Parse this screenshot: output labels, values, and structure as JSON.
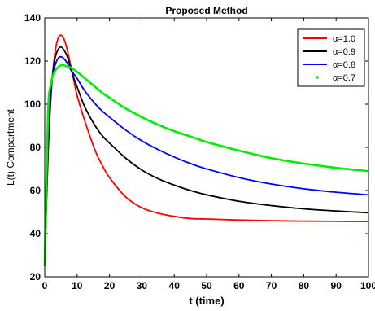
{
  "chart_data": {
    "type": "line",
    "title": "Proposed Method",
    "xlabel": "t (time)",
    "ylabel": "L(t) Compartment",
    "xlim": [
      0,
      100
    ],
    "ylim": [
      20,
      140
    ],
    "x_ticks": [
      "0",
      "10",
      "20",
      "30",
      "40",
      "50",
      "60",
      "70",
      "80",
      "90",
      "100"
    ],
    "y_ticks": [
      "20",
      "40",
      "60",
      "80",
      "100",
      "120",
      "140"
    ],
    "grid": false,
    "legend_position": "top-right",
    "series": [
      {
        "name": "α=1.0",
        "color": "#ff0000",
        "style": "line",
        "x": [
          0,
          1,
          2,
          3,
          4,
          5,
          6,
          7,
          8,
          9,
          10,
          12,
          14,
          16,
          18,
          20,
          25,
          30,
          35,
          40,
          45,
          50,
          60,
          70,
          80,
          90,
          100
        ],
        "y": [
          25,
          75,
          105,
          122,
          130,
          132,
          130,
          125,
          118,
          111,
          104,
          94,
          85,
          77,
          71,
          66,
          57,
          52,
          49.5,
          48,
          47,
          46.8,
          46.3,
          46,
          45.8,
          45.7,
          45.6
        ]
      },
      {
        "name": "α=0.9",
        "color": "#000000",
        "style": "line",
        "x": [
          0,
          1,
          2,
          3,
          4,
          5,
          6,
          7,
          8,
          9,
          10,
          12,
          14,
          16,
          18,
          20,
          25,
          30,
          35,
          40,
          45,
          50,
          60,
          70,
          80,
          90,
          100
        ],
        "y": [
          25,
          78,
          107,
          120,
          125,
          126.5,
          125,
          122,
          117,
          112,
          108,
          100,
          94,
          89,
          85,
          82,
          75,
          69.5,
          65.5,
          62.5,
          60,
          58,
          55,
          53,
          51.5,
          50.5,
          49.7
        ]
      },
      {
        "name": "α=0.8",
        "color": "#0000ff",
        "style": "line",
        "x": [
          0,
          1,
          2,
          3,
          4,
          5,
          6,
          7,
          8,
          9,
          10,
          12,
          14,
          16,
          18,
          20,
          25,
          30,
          35,
          40,
          45,
          50,
          60,
          70,
          80,
          90,
          100
        ],
        "y": [
          25,
          85,
          108,
          117,
          121,
          122,
          121,
          119,
          116,
          114,
          112,
          107,
          103,
          99.5,
          96.5,
          94,
          88,
          83,
          79,
          75.5,
          72.5,
          70,
          66,
          63,
          60.8,
          59.2,
          58
        ]
      },
      {
        "name": "α=0.7",
        "color": "#00ee00",
        "style": "points",
        "x": [
          0,
          1,
          2,
          3,
          4,
          5,
          6,
          7,
          8,
          9,
          10,
          12,
          14,
          16,
          18,
          20,
          25,
          30,
          35,
          40,
          45,
          50,
          60,
          70,
          80,
          90,
          100
        ],
        "y": [
          25,
          95,
          110,
          115,
          117,
          118,
          118,
          117.5,
          117,
          116,
          115,
          112.5,
          110,
          107.5,
          105,
          103,
          98,
          94,
          90.5,
          87.5,
          85,
          82.5,
          78.5,
          75,
          72.5,
          70.5,
          69
        ]
      }
    ]
  }
}
